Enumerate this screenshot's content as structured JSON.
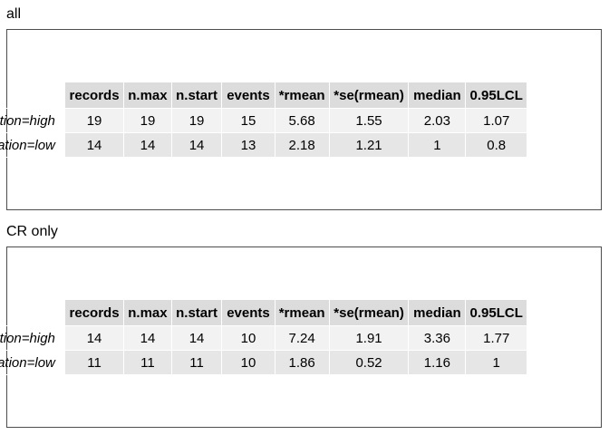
{
  "columns": [
    "records",
    "n.max",
    "n.start",
    "events",
    "*rmean",
    "*se(rmean)",
    "median",
    "0.95LCL"
  ],
  "sections": [
    {
      "title": "all",
      "rows": [
        {
          "label": "classification=high",
          "values": [
            "19",
            "19",
            "19",
            "15",
            "5.68",
            "1.55",
            "2.03",
            "1.07"
          ]
        },
        {
          "label": "classification=low",
          "values": [
            "14",
            "14",
            "14",
            "13",
            "2.18",
            "1.21",
            "1",
            "0.8"
          ]
        }
      ]
    },
    {
      "title": "CR only",
      "rows": [
        {
          "label": "classification=high",
          "values": [
            "14",
            "14",
            "14",
            "10",
            "7.24",
            "1.91",
            "3.36",
            "1.77"
          ]
        },
        {
          "label": "classification=low",
          "values": [
            "11",
            "11",
            "11",
            "10",
            "1.86",
            "0.52",
            "1.16",
            "1"
          ]
        }
      ]
    }
  ]
}
